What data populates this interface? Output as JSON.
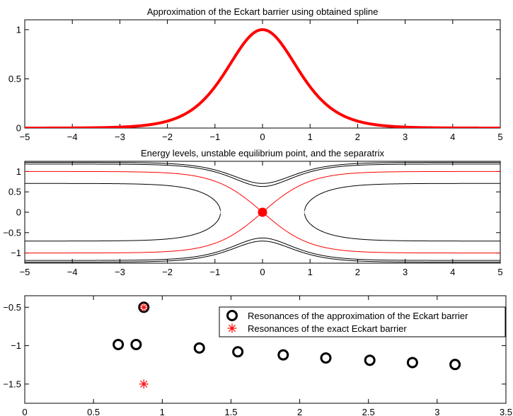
{
  "chart_data": [
    {
      "type": "line",
      "title": "Approximation of the Eckart barrier using obtained spline",
      "xlim": [
        -5,
        5
      ],
      "ylim": [
        0,
        1.1
      ],
      "xticks": [
        -5,
        -4,
        -3,
        -2,
        -1,
        0,
        1,
        2,
        3,
        4,
        5
      ],
      "yticks": [
        0,
        0.5,
        1
      ],
      "xtick_labels": [
        "−5",
        "−4",
        "−3",
        "−2",
        "−1",
        "0",
        "1",
        "2",
        "3",
        "4",
        "5"
      ],
      "ytick_labels": [
        "0",
        "0.5",
        "1"
      ],
      "grid": false,
      "series": [
        {
          "color": "#ff0000",
          "function": "sech^2(x)",
          "x": [
            -5,
            -4.5,
            -4,
            -3.5,
            -3,
            -2.5,
            -2,
            -1.75,
            -1.5,
            -1.25,
            -1,
            -0.75,
            -0.5,
            -0.25,
            0,
            0.25,
            0.5,
            0.75,
            1,
            1.25,
            1.5,
            1.75,
            2,
            2.5,
            3,
            3.5,
            4,
            4.5,
            5
          ],
          "y": [
            0.0002,
            0.0005,
            0.0013,
            0.0036,
            0.0099,
            0.0266,
            0.0707,
            0.1131,
            0.1807,
            0.2856,
            0.42,
            0.5861,
            0.7864,
            0.94,
            1.0,
            0.94,
            0.7864,
            0.5861,
            0.42,
            0.2856,
            0.1807,
            0.1131,
            0.0707,
            0.0266,
            0.0099,
            0.0036,
            0.0013,
            0.0005,
            0.0002
          ]
        }
      ]
    },
    {
      "type": "line",
      "title": "Energy levels, unstable equilibrium point, and the separatrix",
      "xlim": [
        -5,
        5
      ],
      "ylim": [
        -1.25,
        1.25
      ],
      "xticks": [
        -5,
        -4,
        -3,
        -2,
        -1,
        0,
        1,
        2,
        3,
        4,
        5
      ],
      "yticks": [
        -1,
        -0.5,
        0,
        0.5,
        1
      ],
      "xtick_labels": [
        "−5",
        "−4",
        "−3",
        "−2",
        "−1",
        "0",
        "1",
        "2",
        "3",
        "4",
        "5"
      ],
      "ytick_labels": [
        "−1",
        "−0.5",
        "0",
        "0.5",
        "1"
      ],
      "grid": false,
      "potential": "sech^2(x)",
      "energy_levels": [
        {
          "E": 0.5,
          "color": "#000000"
        },
        {
          "E": 1.0,
          "color": "#ff0000",
          "role": "separatrix"
        },
        {
          "E": 1.4,
          "color": "#000000"
        },
        {
          "E": 1.5,
          "color": "#000000"
        }
      ],
      "equilibrium_point": {
        "x": 0,
        "y": 0,
        "color": "#ff0000"
      }
    },
    {
      "type": "scatter",
      "title": "",
      "xlim": [
        0,
        3.5
      ],
      "ylim": [
        -1.75,
        -0.35
      ],
      "xticks": [
        0,
        0.5,
        1,
        1.5,
        2,
        2.5,
        3,
        3.5
      ],
      "yticks": [
        -1.5,
        -1,
        -0.5
      ],
      "xtick_labels": [
        "0",
        "0.5",
        "1",
        "1.5",
        "2",
        "2.5",
        "3",
        "3.5"
      ],
      "ytick_labels": [
        "−1.5",
        "−1",
        "−0.5"
      ],
      "grid": false,
      "legend_position": "top-right",
      "series": [
        {
          "name": "Resonances of the approximation of the Eckart barrier",
          "marker": "circle",
          "color": "#000000",
          "points": [
            [
              0.866,
              -0.5
            ],
            [
              0.68,
              -0.985
            ],
            [
              0.81,
              -0.985
            ],
            [
              1.27,
              -1.03
            ],
            [
              1.55,
              -1.08
            ],
            [
              1.88,
              -1.12
            ],
            [
              2.19,
              -1.16
            ],
            [
              2.51,
              -1.19
            ],
            [
              2.82,
              -1.22
            ],
            [
              3.13,
              -1.245
            ]
          ]
        },
        {
          "name": "Resonances of the exact Eckart barrier",
          "marker": "asterisk",
          "color": "#ff0000",
          "points": [
            [
              0.866,
              -0.5
            ],
            [
              0.866,
              -1.5
            ]
          ]
        }
      ]
    }
  ]
}
